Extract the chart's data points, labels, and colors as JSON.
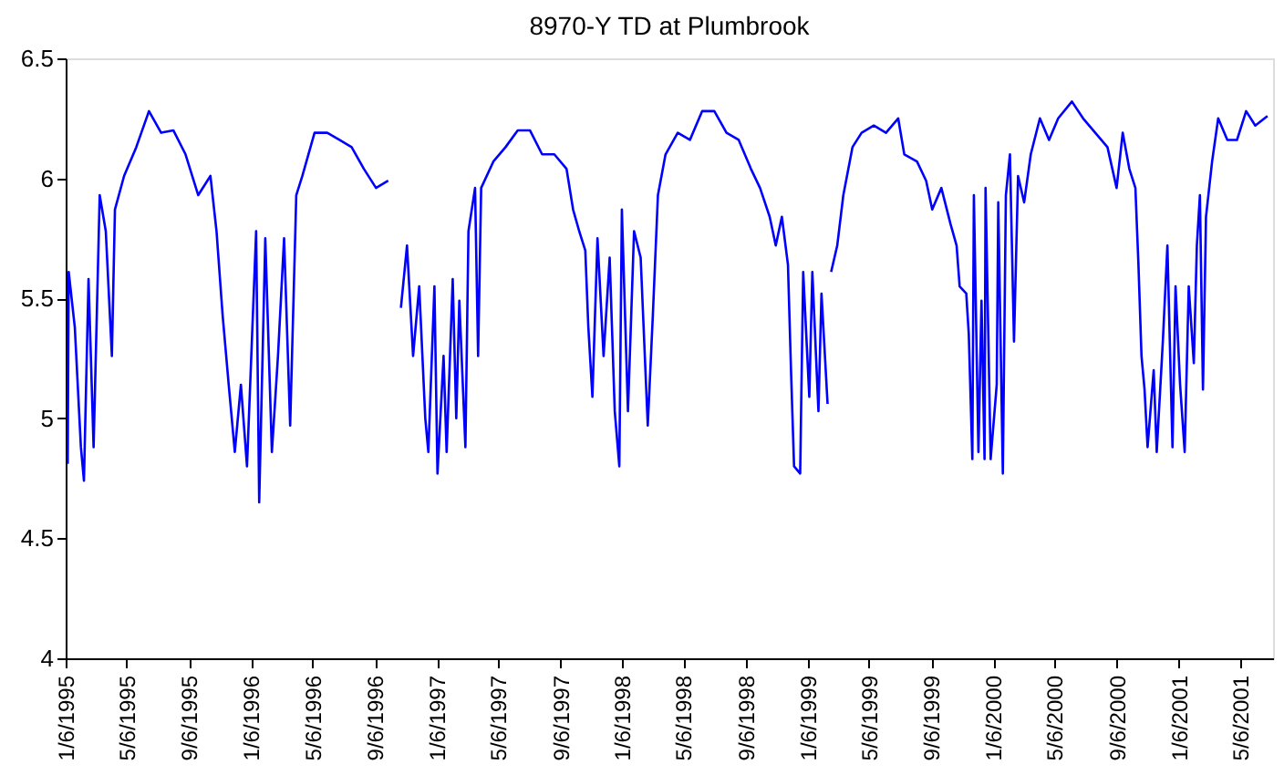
{
  "chart_data": {
    "type": "line",
    "title": "8970-Y TD at Plumbrook",
    "x": [
      "1995-01-10",
      "1995-01-12",
      "1995-01-24",
      "1995-02-05",
      "1995-02-11",
      "1995-02-20",
      "1995-03-02",
      "1995-03-14",
      "1995-03-26",
      "1995-04-07",
      "1995-04-13",
      "1995-05-01",
      "1995-05-25",
      "1995-06-19",
      "1995-07-13",
      "1995-08-06",
      "1995-08-30",
      "1995-09-24",
      "1995-10-18",
      "1995-10-30",
      "1995-11-11",
      "1995-11-23",
      "1995-12-05",
      "1995-12-17",
      "1995-12-29",
      "1996-01-16",
      "1996-01-22",
      "1996-02-03",
      "1996-02-16",
      "1996-02-28",
      "1996-03-11",
      "1996-03-23",
      "1996-04-04",
      "1996-04-16",
      "1996-05-10",
      "1996-06-04",
      "1996-06-28",
      "1996-07-22",
      "1996-08-15",
      "1996-09-08",
      "1996-10-02",
      "1996-10-15",
      "1996-10-27",
      "1996-11-08",
      "1996-11-20",
      "1996-12-02",
      "1996-12-14",
      "1996-12-20",
      "1997-01-01",
      "1997-01-07",
      "1997-01-19",
      "1997-01-25",
      "1997-02-06",
      "1997-02-13",
      "1997-02-19",
      "1997-03-03",
      "1997-03-09",
      "1997-03-22",
      "1997-03-28",
      "1997-04-03",
      "1997-04-27",
      "1997-05-21",
      "1997-06-14",
      "1997-07-08",
      "1997-08-01",
      "1997-08-25",
      "1997-09-18",
      "1997-10-01",
      "1997-10-13",
      "1997-10-25",
      "1997-10-31",
      "1997-11-08",
      "1997-11-18",
      "1997-11-30",
      "1997-12-12",
      "1997-12-22",
      "1997-12-31",
      "1998-01-05",
      "1998-01-17",
      "1998-01-29",
      "1998-02-11",
      "1998-02-25",
      "1998-03-07",
      "1998-03-17",
      "1998-04-01",
      "1998-04-25",
      "1998-05-19",
      "1998-06-12",
      "1998-07-06",
      "1998-07-30",
      "1998-08-23",
      "1998-09-16",
      "1998-10-04",
      "1998-10-23",
      "1998-11-04",
      "1998-11-16",
      "1998-11-28",
      "1998-12-04",
      "1998-12-10",
      "1998-12-22",
      "1998-12-28",
      "1999-01-09",
      "1999-01-15",
      "1999-01-27",
      "1999-02-02",
      "1999-02-14",
      "1999-02-18",
      "1999-02-21",
      "1999-03-05",
      "1999-03-17",
      "1999-04-04",
      "1999-04-22",
      "1999-05-16",
      "1999-06-09",
      "1999-07-03",
      "1999-07-15",
      "1999-08-09",
      "1999-08-27",
      "1999-09-08",
      "1999-09-26",
      "1999-10-14",
      "1999-10-26",
      "1999-11-01",
      "1999-11-14",
      "1999-11-19",
      "1999-11-26",
      "1999-11-29",
      "1999-12-08",
      "1999-12-14",
      "1999-12-20",
      "1999-12-22",
      "2000-01-01",
      "2000-01-13",
      "2000-01-16",
      "2000-01-25",
      "2000-01-31",
      "2000-02-08",
      "2000-02-16",
      "2000-02-24",
      "2000-03-07",
      "2000-03-20",
      "2000-04-07",
      "2000-04-25",
      "2000-05-13",
      "2000-06-09",
      "2000-07-01",
      "2000-07-25",
      "2000-08-18",
      "2000-09-05",
      "2000-09-17",
      "2000-09-30",
      "2000-10-12",
      "2000-10-18",
      "2000-10-24",
      "2000-10-30",
      "2000-11-05",
      "2000-11-17",
      "2000-11-23",
      "2000-12-05",
      "2000-12-14",
      "2000-12-24",
      "2000-12-30",
      "2001-01-08",
      "2001-01-17",
      "2001-01-25",
      "2001-02-04",
      "2001-02-10",
      "2001-02-16",
      "2001-02-22",
      "2001-02-28",
      "2001-03-12",
      "2001-03-24",
      "2001-04-11",
      "2001-04-30",
      "2001-05-18",
      "2001-06-05",
      "2001-06-29"
    ],
    "series": [
      {
        "color": "#0000ff",
        "values": [
          4.81,
          5.61,
          5.38,
          4.88,
          4.74,
          5.58,
          4.88,
          5.93,
          5.78,
          5.26,
          5.87,
          6.01,
          6.13,
          6.28,
          6.19,
          6.2,
          6.1,
          5.93,
          6.01,
          5.78,
          5.43,
          5.14,
          4.86,
          5.14,
          4.8,
          5.78,
          4.65,
          5.75,
          4.86,
          5.26,
          5.75,
          4.97,
          5.93,
          6.01,
          6.19,
          6.19,
          6.16,
          6.13,
          6.04,
          5.96,
          5.99,
          null,
          5.46,
          5.72,
          5.26,
          5.55,
          5.0,
          4.86,
          5.55,
          4.77,
          5.26,
          4.86,
          5.58,
          5.0,
          5.49,
          4.88,
          5.78,
          5.96,
          5.26,
          5.96,
          6.07,
          6.13,
          6.2,
          6.2,
          6.1,
          6.1,
          6.04,
          5.87,
          5.78,
          5.7,
          5.38,
          5.09,
          5.75,
          5.26,
          5.67,
          5.03,
          4.8,
          5.87,
          5.03,
          5.78,
          5.67,
          4.97,
          5.43,
          5.93,
          6.1,
          6.19,
          6.16,
          6.28,
          6.28,
          6.19,
          6.16,
          6.04,
          5.96,
          5.84,
          5.72,
          5.84,
          5.64,
          5.2,
          4.8,
          4.77,
          5.61,
          5.09,
          5.61,
          5.03,
          5.52,
          5.06,
          null,
          5.61,
          5.72,
          5.93,
          6.13,
          6.19,
          6.22,
          6.19,
          6.25,
          6.1,
          6.07,
          5.99,
          5.87,
          5.96,
          5.81,
          5.72,
          5.55,
          5.52,
          5.35,
          4.83,
          5.93,
          4.86,
          5.49,
          4.83,
          5.96,
          4.83,
          5.14,
          5.9,
          4.77,
          5.93,
          6.1,
          5.32,
          6.01,
          5.9,
          6.1,
          6.25,
          6.16,
          6.25,
          6.32,
          6.25,
          6.19,
          6.13,
          5.96,
          6.19,
          6.04,
          5.96,
          5.64,
          5.26,
          5.12,
          4.88,
          5.2,
          4.86,
          5.32,
          5.72,
          4.88,
          5.55,
          5.14,
          4.86,
          5.55,
          5.23,
          5.72,
          5.93,
          5.12,
          5.84,
          6.07,
          6.25,
          6.16,
          6.16,
          6.28,
          6.22,
          6.26
        ]
      }
    ],
    "xlim": [
      "1995-01-06",
      "2001-07-10"
    ],
    "xticks": [
      {
        "value": "1995-01-06",
        "label": "1/6/1995"
      },
      {
        "value": "1995-05-06",
        "label": "5/6/1995"
      },
      {
        "value": "1995-09-06",
        "label": "9/6/1995"
      },
      {
        "value": "1996-01-06",
        "label": "1/6/1996"
      },
      {
        "value": "1996-05-06",
        "label": "5/6/1996"
      },
      {
        "value": "1996-09-06",
        "label": "9/6/1996"
      },
      {
        "value": "1997-01-06",
        "label": "1/6/1997"
      },
      {
        "value": "1997-05-06",
        "label": "5/6/1997"
      },
      {
        "value": "1997-09-06",
        "label": "9/6/1997"
      },
      {
        "value": "1998-01-06",
        "label": "1/6/1998"
      },
      {
        "value": "1998-05-06",
        "label": "5/6/1998"
      },
      {
        "value": "1998-09-06",
        "label": "9/6/1998"
      },
      {
        "value": "1999-01-06",
        "label": "1/6/1999"
      },
      {
        "value": "1999-05-06",
        "label": "5/6/1999"
      },
      {
        "value": "1999-09-06",
        "label": "9/6/1999"
      },
      {
        "value": "2000-01-06",
        "label": "1/6/2000"
      },
      {
        "value": "2000-05-06",
        "label": "5/6/2000"
      },
      {
        "value": "2000-09-06",
        "label": "9/6/2000"
      },
      {
        "value": "2001-01-06",
        "label": "1/6/2001"
      },
      {
        "value": "2001-05-06",
        "label": "5/6/2001"
      }
    ],
    "ylim": [
      4,
      6.5
    ],
    "yticks": [
      4,
      4.5,
      5,
      5.5,
      6,
      6.5
    ],
    "grid": false
  }
}
